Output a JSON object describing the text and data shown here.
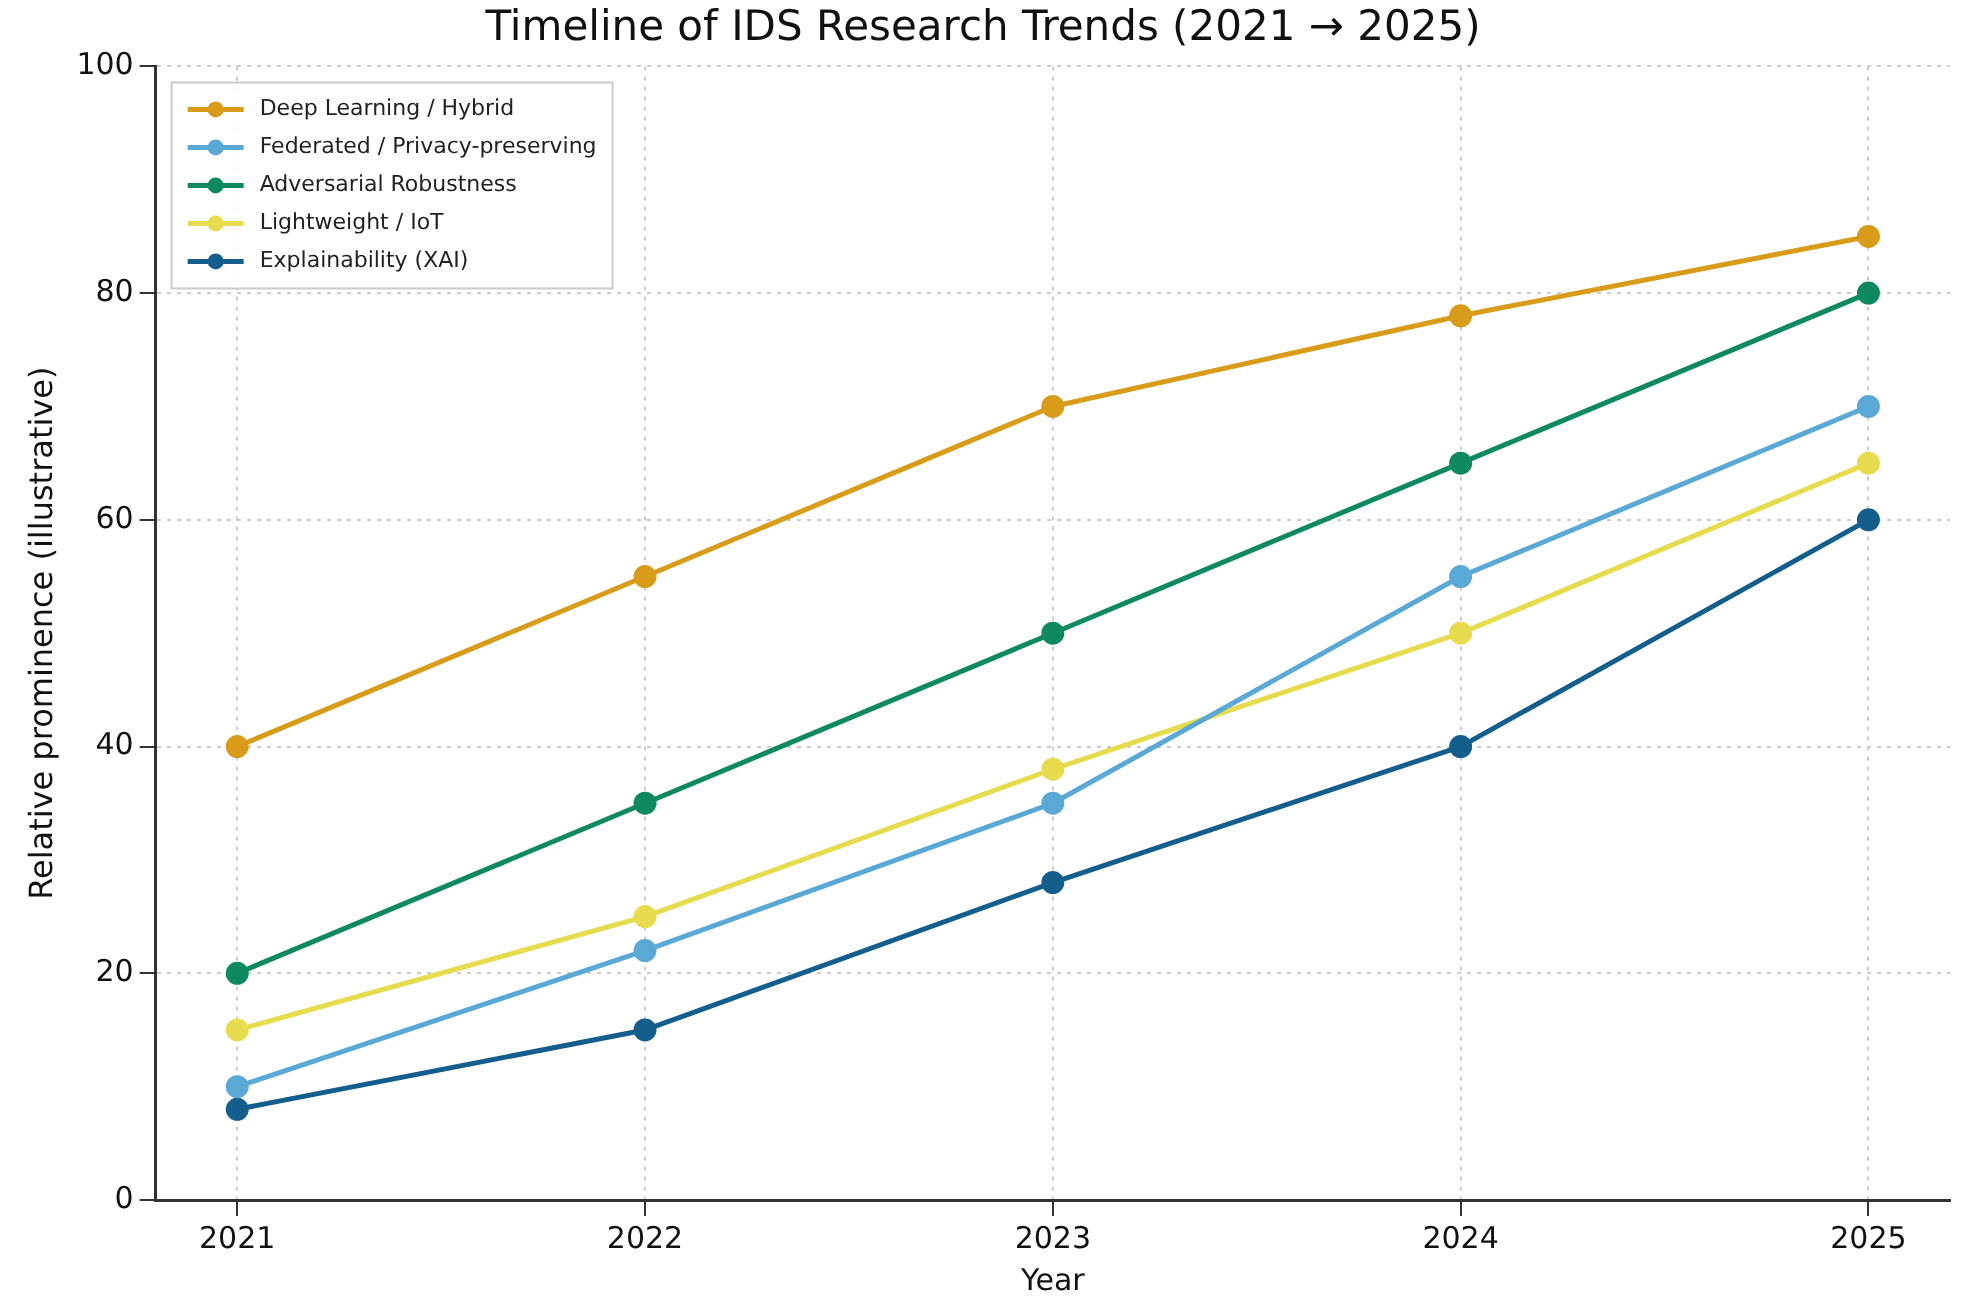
{
  "chart_data": {
    "type": "line",
    "title": "Timeline of IDS Research Trends (2021 → 2025)",
    "xlabel": "Year",
    "ylabel": "Relative prominence (illustrative)",
    "x": [
      2021,
      2022,
      2023,
      2024,
      2025
    ],
    "xlim": [
      2020.8,
      2025.2
    ],
    "xticks": [
      2021,
      2022,
      2023,
      2024,
      2025
    ],
    "ylim": [
      0,
      100
    ],
    "yticks": [
      0,
      20,
      40,
      60,
      80,
      100
    ],
    "series": [
      {
        "name": "Deep Learning / Hybrid",
        "color": "#d89c1a",
        "values": [
          40,
          55,
          70,
          78,
          85
        ]
      },
      {
        "name": "Federated / Privacy-preserving",
        "color": "#5aa8d6",
        "values": [
          10,
          22,
          35,
          55,
          70
        ]
      },
      {
        "name": "Adversarial Robustness",
        "color": "#0f8a60",
        "values": [
          20,
          35,
          50,
          65,
          80
        ]
      },
      {
        "name": "Lightweight / IoT",
        "color": "#e6dc4e",
        "values": [
          15,
          25,
          38,
          50,
          65
        ]
      },
      {
        "name": "Explainability (XAI)",
        "color": "#135e8c",
        "values": [
          8,
          15,
          28,
          40,
          60
        ]
      }
    ],
    "grid": true,
    "legend": "top left",
    "marker": "circle",
    "line_style": "solid"
  }
}
